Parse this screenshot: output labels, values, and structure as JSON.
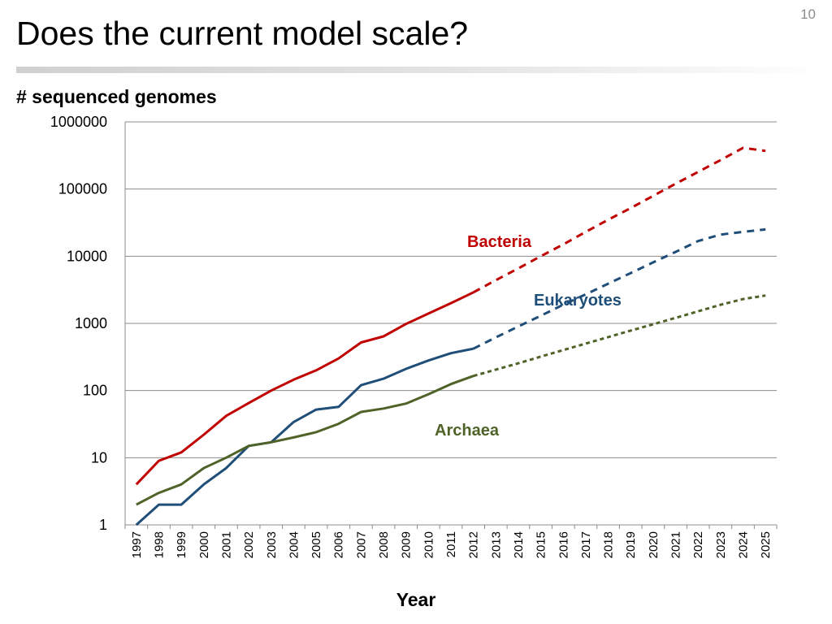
{
  "slide": {
    "title": "Does the current model scale?",
    "page_number": "10"
  },
  "chart_data": {
    "type": "line",
    "title": "# sequenced genomes",
    "xlabel": "Year",
    "ylabel": "",
    "yscale": "log",
    "ylim": [
      1,
      1000000
    ],
    "y_ticks": [
      "1",
      "10",
      "100",
      "1000",
      "10000",
      "100000",
      "1000000"
    ],
    "grid": true,
    "categories": [
      "1997",
      "1998",
      "1999",
      "2000",
      "2001",
      "2002",
      "2003",
      "2004",
      "2005",
      "2006",
      "2007",
      "2008",
      "2009",
      "2010",
      "2011",
      "2012",
      "2013",
      "2014",
      "2015",
      "2016",
      "2017",
      "2018",
      "2019",
      "2020",
      "2021",
      "2022",
      "2023",
      "2024",
      "2025"
    ],
    "series": [
      {
        "name": "Bacteria",
        "color": "#c00000",
        "observed": [
          4,
          9,
          12,
          22,
          42,
          65,
          100,
          145,
          200,
          300,
          520,
          640,
          980,
          1400,
          2000,
          2900,
          null,
          null,
          null,
          null,
          null,
          null,
          null,
          null,
          null,
          null,
          null,
          null,
          null
        ],
        "projected": [
          null,
          null,
          null,
          null,
          null,
          null,
          null,
          null,
          null,
          null,
          null,
          null,
          null,
          null,
          null,
          2900,
          4400,
          6600,
          10000,
          15000,
          23000,
          35000,
          52000,
          79000,
          120000,
          180000,
          270000,
          410000,
          370000
        ]
      },
      {
        "name": "Eukaryotes",
        "color": "#1f4e79",
        "observed": [
          1,
          2,
          2,
          4,
          7,
          15,
          17,
          34,
          52,
          57,
          120,
          150,
          210,
          280,
          360,
          420,
          null,
          null,
          null,
          null,
          null,
          null,
          null,
          null,
          null,
          null,
          null,
          null,
          null
        ],
        "projected": [
          null,
          null,
          null,
          null,
          null,
          null,
          null,
          null,
          null,
          null,
          null,
          null,
          null,
          null,
          null,
          420,
          620,
          900,
          1300,
          1900,
          2700,
          3900,
          5600,
          8100,
          11600,
          16800,
          21000,
          23000,
          25000
        ]
      },
      {
        "name": "Archaea",
        "color": "#4f6228",
        "observed": [
          2,
          3,
          4,
          7,
          10,
          15,
          17,
          20,
          24,
          32,
          48,
          54,
          64,
          88,
          125,
          165,
          null,
          null,
          null,
          null,
          null,
          null,
          null,
          null,
          null,
          null,
          null,
          null,
          null
        ],
        "projected": [
          null,
          null,
          null,
          null,
          null,
          null,
          null,
          null,
          null,
          null,
          null,
          null,
          null,
          null,
          null,
          165,
          205,
          255,
          320,
          400,
          500,
          625,
          780,
          970,
          1210,
          1510,
          1890,
          2300,
          2600
        ]
      }
    ]
  }
}
